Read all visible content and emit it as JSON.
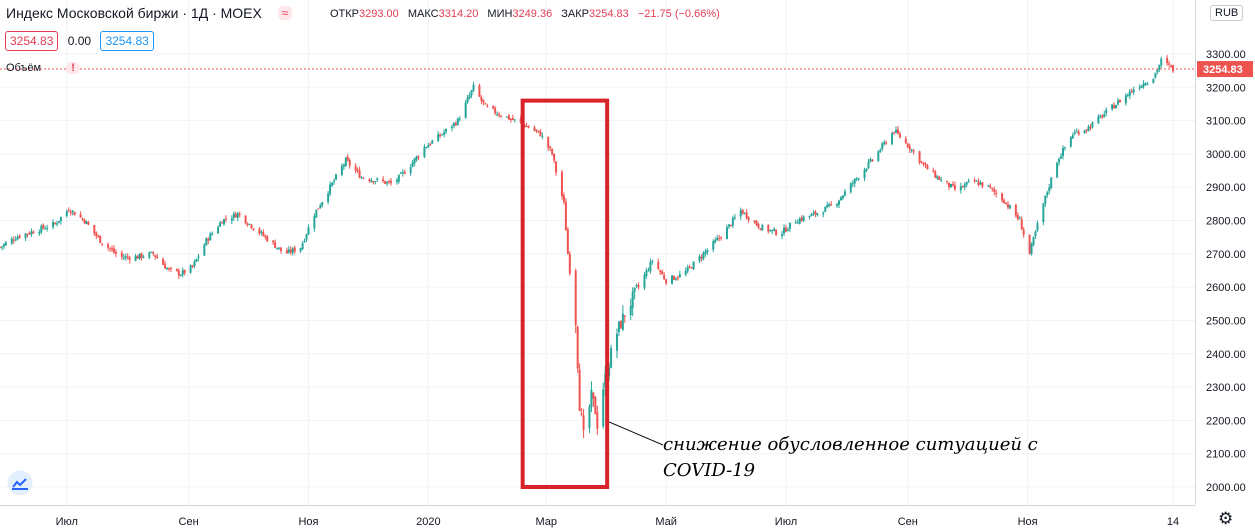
{
  "header": {
    "title": "Индекс Московской биржи · 1Д · MOEX",
    "wave_badge": "≈",
    "ohlc": [
      {
        "label": "ОТКР",
        "value": "3293.00"
      },
      {
        "label": "МАКС",
        "value": "3314.20"
      },
      {
        "label": "МИН",
        "value": "3249.36"
      },
      {
        "label": "ЗАКР",
        "value": "3254.83"
      },
      {
        "label": "",
        "value": "−21.75 (−0.66%)"
      }
    ],
    "bid": "3254.83",
    "spread": "0.00",
    "ask": "3254.83",
    "volume_label": "Объём",
    "volume_warning": "!",
    "currency": "RUB"
  },
  "annotation": {
    "text": "снижение обусловленное ситуацией с COVID-19"
  },
  "colors": {
    "up": "#26a69a",
    "down": "#ef5350",
    "highlight": "#d8232a",
    "last_price": "#ef5350"
  },
  "icons": {
    "logo": "tradingview-cloud-icon",
    "settings": "gear-icon"
  },
  "chart_data": {
    "type": "candlestick",
    "title": "Индекс Московской биржи · 1Д · MOEX",
    "ylim": [
      1960,
      3350
    ],
    "y_ticks": [
      2000,
      2100,
      2200,
      2300,
      2400,
      2500,
      2600,
      2700,
      2800,
      2900,
      3000,
      3100,
      3200,
      3300
    ],
    "y_tick_labels": [
      "2000.00",
      "2100.00",
      "2200.00",
      "2300.00",
      "2400.00",
      "2500.00",
      "2600.00",
      "2700.00",
      "2800.00",
      "2900.00",
      "3000.00",
      "3100.00",
      "3200.00",
      "3300.00"
    ],
    "x_range": [
      "2019-05-28",
      "2021-01-15"
    ],
    "x_ticks": [
      {
        "date": "2019-07-01",
        "label": "Июл"
      },
      {
        "date": "2019-09-01",
        "label": "Сен"
      },
      {
        "date": "2019-11-01",
        "label": "Ноя"
      },
      {
        "date": "2020-01-01",
        "label": "2020"
      },
      {
        "date": "2020-03-01",
        "label": "Мар"
      },
      {
        "date": "2020-05-01",
        "label": "Май"
      },
      {
        "date": "2020-07-01",
        "label": "Июл"
      },
      {
        "date": "2020-09-01",
        "label": "Сен"
      },
      {
        "date": "2020-11-01",
        "label": "Ноя"
      },
      {
        "date": "2021-01-14",
        "label": "14"
      }
    ],
    "last_price": 3254.83,
    "last_price_label": "3254.83",
    "highlight_range": {
      "from": "2020-02-18",
      "to": "2020-04-01",
      "low": 2000,
      "high": 3160
    },
    "close_series": [
      {
        "date": "2019-05-28",
        "close": 2720
      },
      {
        "date": "2019-06-05",
        "close": 2750
      },
      {
        "date": "2019-06-15",
        "close": 2770
      },
      {
        "date": "2019-06-25",
        "close": 2790
      },
      {
        "date": "2019-07-02",
        "close": 2835
      },
      {
        "date": "2019-07-10",
        "close": 2800
      },
      {
        "date": "2019-07-18",
        "close": 2740
      },
      {
        "date": "2019-07-28",
        "close": 2690
      },
      {
        "date": "2019-08-05",
        "close": 2690
      },
      {
        "date": "2019-08-14",
        "close": 2700
      },
      {
        "date": "2019-08-22",
        "close": 2650
      },
      {
        "date": "2019-08-28",
        "close": 2640
      },
      {
        "date": "2019-09-03",
        "close": 2660
      },
      {
        "date": "2019-09-10",
        "close": 2740
      },
      {
        "date": "2019-09-18",
        "close": 2800
      },
      {
        "date": "2019-09-26",
        "close": 2820
      },
      {
        "date": "2019-10-04",
        "close": 2780
      },
      {
        "date": "2019-10-12",
        "close": 2740
      },
      {
        "date": "2019-10-20",
        "close": 2700
      },
      {
        "date": "2019-10-28",
        "close": 2720
      },
      {
        "date": "2019-11-04",
        "close": 2820
      },
      {
        "date": "2019-11-12",
        "close": 2900
      },
      {
        "date": "2019-11-20",
        "close": 2980
      },
      {
        "date": "2019-11-28",
        "close": 2930
      },
      {
        "date": "2019-12-06",
        "close": 2920
      },
      {
        "date": "2019-12-14",
        "close": 2910
      },
      {
        "date": "2019-12-22",
        "close": 2960
      },
      {
        "date": "2019-12-30",
        "close": 3020
      },
      {
        "date": "2020-01-08",
        "close": 3060
      },
      {
        "date": "2020-01-16",
        "close": 3100
      },
      {
        "date": "2020-01-24",
        "close": 3200
      },
      {
        "date": "2020-01-30",
        "close": 3140
      },
      {
        "date": "2020-02-06",
        "close": 3120
      },
      {
        "date": "2020-02-14",
        "close": 3100
      },
      {
        "date": "2020-02-21",
        "close": 3080
      },
      {
        "date": "2020-02-27",
        "close": 3060
      },
      {
        "date": "2020-03-04",
        "close": 3000
      },
      {
        "date": "2020-03-07",
        "close": 2920
      },
      {
        "date": "2020-03-10",
        "close": 2850
      },
      {
        "date": "2020-03-12",
        "close": 2700
      },
      {
        "date": "2020-03-16",
        "close": 2500
      },
      {
        "date": "2020-03-18",
        "close": 2250
      },
      {
        "date": "2020-03-20",
        "close": 2150
      },
      {
        "date": "2020-03-24",
        "close": 2270
      },
      {
        "date": "2020-03-26",
        "close": 2230
      },
      {
        "date": "2020-03-28",
        "close": 2150
      },
      {
        "date": "2020-03-30",
        "close": 2300
      },
      {
        "date": "2020-04-01",
        "close": 2350
      },
      {
        "date": "2020-04-05",
        "close": 2450
      },
      {
        "date": "2020-04-10",
        "close": 2520
      },
      {
        "date": "2020-04-17",
        "close": 2600
      },
      {
        "date": "2020-04-24",
        "close": 2680
      },
      {
        "date": "2020-05-01",
        "close": 2620
      },
      {
        "date": "2020-05-10",
        "close": 2640
      },
      {
        "date": "2020-05-20",
        "close": 2700
      },
      {
        "date": "2020-05-30",
        "close": 2760
      },
      {
        "date": "2020-06-08",
        "close": 2830
      },
      {
        "date": "2020-06-18",
        "close": 2780
      },
      {
        "date": "2020-06-28",
        "close": 2760
      },
      {
        "date": "2020-07-06",
        "close": 2800
      },
      {
        "date": "2020-07-16",
        "close": 2820
      },
      {
        "date": "2020-07-26",
        "close": 2850
      },
      {
        "date": "2020-08-05",
        "close": 2920
      },
      {
        "date": "2020-08-15",
        "close": 2990
      },
      {
        "date": "2020-08-25",
        "close": 3070
      },
      {
        "date": "2020-09-02",
        "close": 3020
      },
      {
        "date": "2020-09-10",
        "close": 2960
      },
      {
        "date": "2020-09-18",
        "close": 2920
      },
      {
        "date": "2020-09-26",
        "close": 2890
      },
      {
        "date": "2020-10-04",
        "close": 2920
      },
      {
        "date": "2020-10-12",
        "close": 2900
      },
      {
        "date": "2020-10-20",
        "close": 2860
      },
      {
        "date": "2020-10-28",
        "close": 2800
      },
      {
        "date": "2020-11-02",
        "close": 2700
      },
      {
        "date": "2020-11-09",
        "close": 2850
      },
      {
        "date": "2020-11-16",
        "close": 2980
      },
      {
        "date": "2020-11-24",
        "close": 3060
      },
      {
        "date": "2020-12-02",
        "close": 3080
      },
      {
        "date": "2020-12-10",
        "close": 3120
      },
      {
        "date": "2020-12-18",
        "close": 3160
      },
      {
        "date": "2020-12-26",
        "close": 3200
      },
      {
        "date": "2021-01-04",
        "close": 3230
      },
      {
        "date": "2021-01-08",
        "close": 3280
      },
      {
        "date": "2021-01-14",
        "close": 3254.83
      }
    ]
  }
}
